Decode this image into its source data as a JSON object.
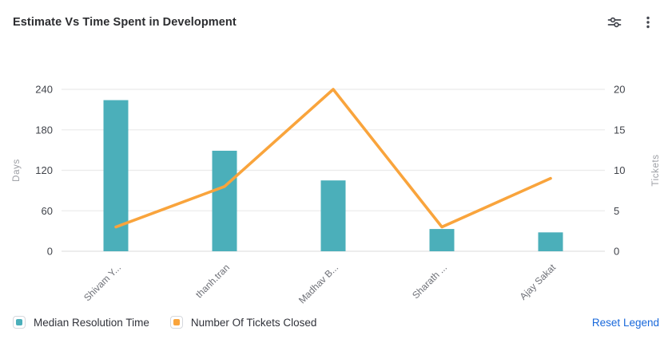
{
  "header": {
    "title": "Estimate Vs Time Spent in Development",
    "settings_icon": "sliders-icon",
    "more_icon": "kebab-menu-icon"
  },
  "chart_data": {
    "type": "combo",
    "title": "Estimate Vs Time Spent in Development",
    "categories": [
      "Shivam Y...",
      "thanh.tran",
      "Madhav B...",
      "Sharath ...",
      "Ajay Sakat"
    ],
    "series": [
      {
        "name": "Median Resolution Time",
        "type": "bar",
        "axis": "left",
        "color": "#4BAFBA",
        "values": [
          224,
          149,
          105,
          33,
          28
        ]
      },
      {
        "name": "Number Of Tickets Closed",
        "type": "line",
        "axis": "right",
        "color": "#F9A43C",
        "values": [
          3,
          8,
          20,
          3,
          9
        ]
      }
    ],
    "axes": {
      "left": {
        "label": "Days",
        "min": 0,
        "max": 240,
        "ticks": [
          0,
          60,
          120,
          180,
          240
        ]
      },
      "right": {
        "label": "Tickets",
        "min": 0,
        "max": 20,
        "ticks": [
          0,
          5,
          10,
          15,
          20
        ]
      }
    },
    "grid": true,
    "legend_position": "bottom"
  },
  "legend": {
    "reset_label": "Reset Legend",
    "reset_color": "#1868DB"
  },
  "colors": {
    "grid_line": "#ebebeb",
    "axis_line": "#e2e2e2",
    "tick_text": "#40434a",
    "axis_title_text": "#9b9da3",
    "x_label_text": "#6e7077",
    "icon": "#44474f"
  }
}
